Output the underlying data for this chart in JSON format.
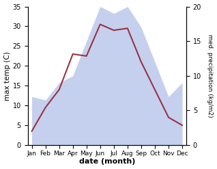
{
  "months": [
    "Jan",
    "Feb",
    "Mar",
    "Apr",
    "May",
    "Jun",
    "Jul",
    "Aug",
    "Sep",
    "Oct",
    "Nov",
    "Dec"
  ],
  "temperature": [
    3.5,
    9.5,
    14.0,
    23.0,
    22.5,
    30.5,
    29.0,
    29.5,
    21.0,
    14.0,
    7.0,
    5.0
  ],
  "precipitation": [
    7,
    6.5,
    9,
    10,
    15,
    20,
    19,
    20,
    17,
    12,
    7,
    9
  ],
  "temp_color": "#993344",
  "precip_fill_color": "#c5d0ee",
  "xlabel": "date (month)",
  "ylabel_left": "max temp (C)",
  "ylabel_right": "med. precipitation (kg/m2)",
  "ylim_left": [
    0,
    35
  ],
  "ylim_right": [
    0,
    20
  ],
  "bg_color": "#ffffff"
}
